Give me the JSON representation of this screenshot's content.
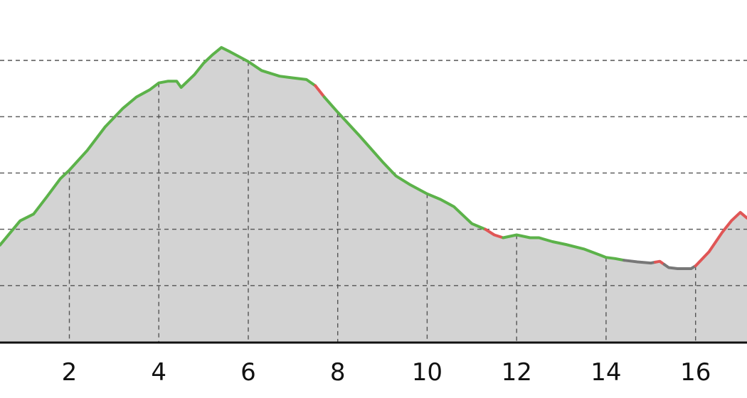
{
  "chart_data": {
    "type": "area",
    "title": "",
    "xlabel": "",
    "ylabel": "",
    "grid": true,
    "xlim": [
      0.45,
      17.15
    ],
    "ylim": [
      0,
      50
    ],
    "x_ticks": [
      2,
      4,
      6,
      8,
      10,
      12,
      14,
      16
    ],
    "x_tick_labels": [
      "2",
      "4",
      "6",
      "8",
      "10",
      "12",
      "14",
      "16"
    ],
    "y_gridlines": [
      10,
      20,
      30,
      40,
      50
    ],
    "y_tick_labels": [],
    "fill_color": "#d3d3d3",
    "segment_colors": {
      "green": "#5cb24a",
      "red": "#e05656",
      "gray": "#777777"
    },
    "x": [
      0.45,
      0.9,
      1.2,
      1.5,
      1.8,
      2.0,
      2.4,
      2.8,
      3.2,
      3.5,
      3.8,
      4.0,
      4.2,
      4.4,
      4.5,
      4.8,
      5.0,
      5.2,
      5.4,
      5.6,
      6.0,
      6.3,
      6.7,
      7.0,
      7.3,
      7.5,
      7.7,
      8.0,
      8.5,
      9.0,
      9.3,
      9.6,
      10.0,
      10.3,
      10.6,
      10.8,
      11.0,
      11.3,
      11.5,
      11.7,
      12.0,
      12.3,
      12.5,
      12.8,
      13.1,
      13.5,
      13.9,
      14.0,
      14.2,
      14.4,
      14.7,
      15.0,
      15.2,
      15.4,
      15.6,
      15.9,
      16.0,
      16.3,
      16.6,
      16.8,
      17.0,
      17.15
    ],
    "values": [
      17.2,
      21.5,
      22.7,
      25.8,
      29.0,
      30.5,
      34.0,
      38.2,
      41.5,
      43.5,
      44.8,
      46.0,
      46.3,
      46.3,
      45.2,
      47.5,
      49.5,
      51.0,
      52.3,
      51.5,
      49.8,
      48.2,
      47.2,
      46.9,
      46.6,
      45.5,
      43.5,
      40.8,
      36.5,
      32.0,
      29.5,
      28.0,
      26.3,
      25.3,
      24.0,
      22.5,
      21.0,
      20.0,
      19.0,
      18.5,
      19.0,
      18.5,
      18.5,
      17.8,
      17.3,
      16.5,
      15.3,
      15.0,
      14.8,
      14.5,
      14.2,
      14.0,
      14.3,
      13.2,
      13.0,
      13.0,
      13.5,
      16.0,
      19.5,
      21.5,
      23.0,
      22.0
    ],
    "segments": [
      {
        "color": "green",
        "x_from": 0.45,
        "x_to": 7.5
      },
      {
        "color": "red",
        "x_from": 7.5,
        "x_to": 7.7
      },
      {
        "color": "green",
        "x_from": 7.7,
        "x_to": 11.3
      },
      {
        "color": "red",
        "x_from": 11.3,
        "x_to": 11.7
      },
      {
        "color": "green",
        "x_from": 11.7,
        "x_to": 14.4
      },
      {
        "color": "gray",
        "x_from": 14.4,
        "x_to": 15.1
      },
      {
        "color": "red",
        "x_from": 15.1,
        "x_to": 15.3
      },
      {
        "color": "gray",
        "x_from": 15.3,
        "x_to": 16.0
      },
      {
        "color": "red",
        "x_from": 16.0,
        "x_to": 17.15
      }
    ]
  }
}
